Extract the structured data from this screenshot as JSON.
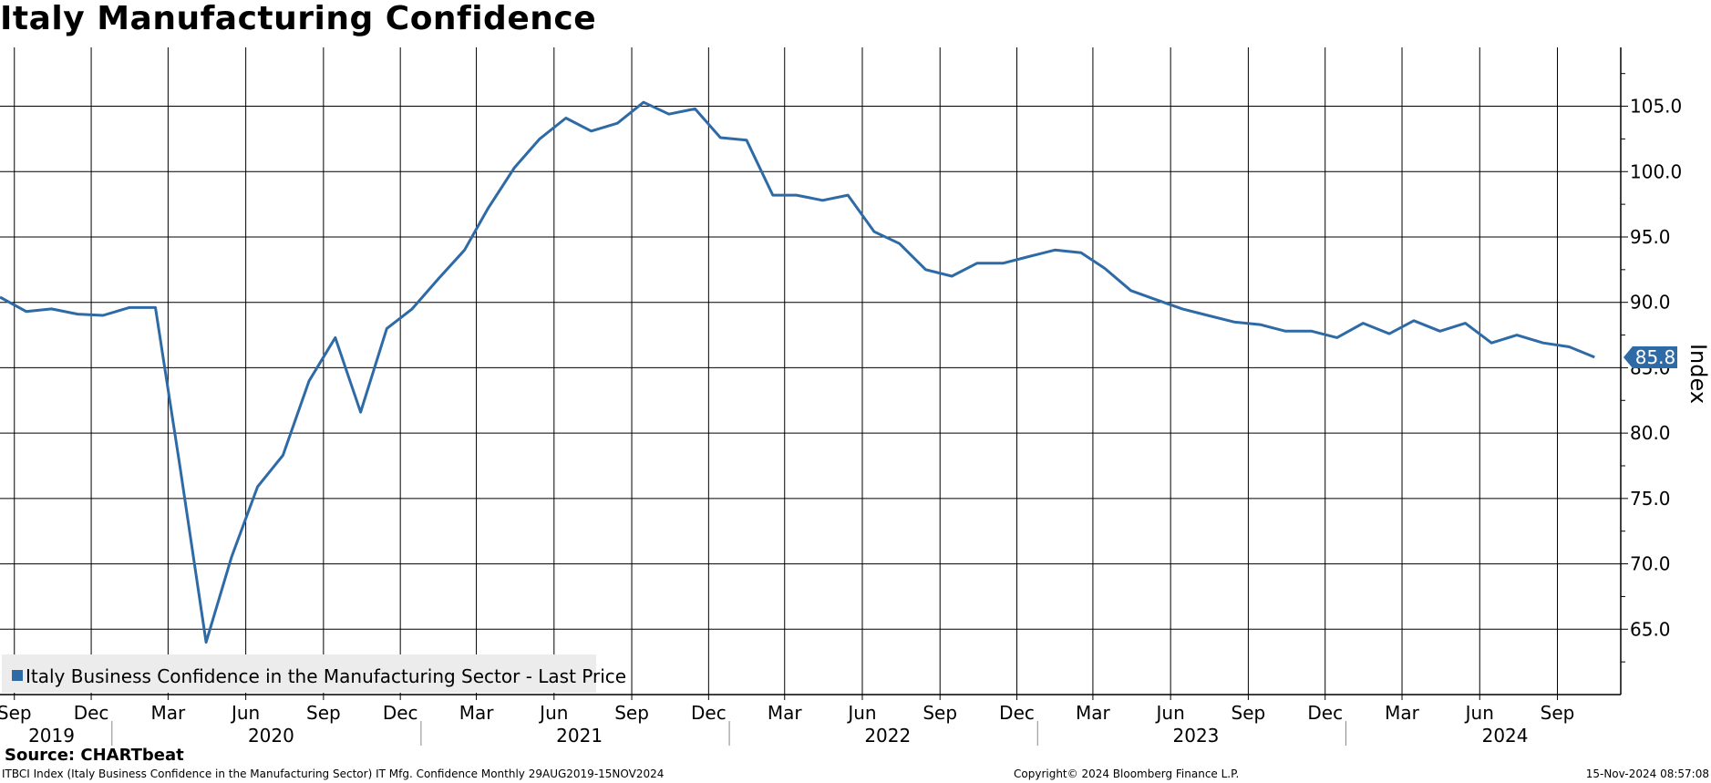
{
  "chart_data": {
    "type": "line",
    "title": "Italy Manufacturing Confidence",
    "ylabel": "Index",
    "ylim": [
      60.0,
      109.5
    ],
    "xlim": [
      "2019-08-15",
      "2024-11-15"
    ],
    "y_ticks": [
      "105.0",
      "100.0",
      "95.0",
      "90.0",
      "85.0",
      "80.0",
      "75.0",
      "70.0",
      "65.0"
    ],
    "x_month_ticks": [
      {
        "label": "Sep",
        "date": "2019-09-01"
      },
      {
        "label": "Dec",
        "date": "2019-12-01"
      },
      {
        "label": "Mar",
        "date": "2020-03-01"
      },
      {
        "label": "Jun",
        "date": "2020-06-01"
      },
      {
        "label": "Sep",
        "date": "2020-09-01"
      },
      {
        "label": "Dec",
        "date": "2020-12-01"
      },
      {
        "label": "Mar",
        "date": "2021-03-01"
      },
      {
        "label": "Jun",
        "date": "2021-06-01"
      },
      {
        "label": "Sep",
        "date": "2021-09-01"
      },
      {
        "label": "Dec",
        "date": "2021-12-01"
      },
      {
        "label": "Mar",
        "date": "2022-03-01"
      },
      {
        "label": "Jun",
        "date": "2022-06-01"
      },
      {
        "label": "Sep",
        "date": "2022-09-01"
      },
      {
        "label": "Dec",
        "date": "2022-12-01"
      },
      {
        "label": "Mar",
        "date": "2023-03-01"
      },
      {
        "label": "Jun",
        "date": "2023-06-01"
      },
      {
        "label": "Sep",
        "date": "2023-09-01"
      },
      {
        "label": "Dec",
        "date": "2023-12-01"
      },
      {
        "label": "Mar",
        "date": "2024-03-01"
      },
      {
        "label": "Jun",
        "date": "2024-06-01"
      },
      {
        "label": "Sep",
        "date": "2024-09-01"
      }
    ],
    "x_year_labels": [
      {
        "label": "2019",
        "date": "2019-10-15"
      },
      {
        "label": "2020",
        "date": "2020-07-01"
      },
      {
        "label": "2021",
        "date": "2021-07-01"
      },
      {
        "label": "2022",
        "date": "2022-07-01"
      },
      {
        "label": "2023",
        "date": "2023-07-01"
      },
      {
        "label": "2024",
        "date": "2024-07-01"
      }
    ],
    "year_dividers": [
      "2020-01-01",
      "2021-01-01",
      "2022-01-01",
      "2023-01-01",
      "2024-01-01"
    ],
    "grid": true,
    "legend_position": "bottom-left",
    "series": [
      {
        "name": "Italy Business Confidence in the Manufacturing Sector - Last Price",
        "color": "#2e6aa6",
        "last_value_label": "85.8",
        "points": [
          [
            "2019-08-15",
            90.4
          ],
          [
            "2019-09-15",
            89.3
          ],
          [
            "2019-10-15",
            89.5
          ],
          [
            "2019-11-15",
            89.1
          ],
          [
            "2019-12-15",
            89.0
          ],
          [
            "2020-01-15",
            89.6
          ],
          [
            "2020-02-15",
            89.6
          ],
          [
            "2020-03-15",
            77.5
          ],
          [
            "2020-04-15",
            64.0
          ],
          [
            "2020-05-15",
            70.5
          ],
          [
            "2020-06-15",
            75.9
          ],
          [
            "2020-07-15",
            78.3
          ],
          [
            "2020-08-15",
            84.0
          ],
          [
            "2020-09-15",
            87.3
          ],
          [
            "2020-10-15",
            81.6
          ],
          [
            "2020-11-15",
            88.0
          ],
          [
            "2020-12-15",
            89.5
          ],
          [
            "2021-01-15",
            91.8
          ],
          [
            "2021-02-15",
            94.0
          ],
          [
            "2021-03-15",
            97.2
          ],
          [
            "2021-04-15",
            100.3
          ],
          [
            "2021-05-15",
            102.5
          ],
          [
            "2021-06-15",
            104.1
          ],
          [
            "2021-07-15",
            103.1
          ],
          [
            "2021-08-15",
            103.7
          ],
          [
            "2021-09-15",
            105.3
          ],
          [
            "2021-10-15",
            104.4
          ],
          [
            "2021-11-15",
            104.8
          ],
          [
            "2021-12-15",
            102.6
          ],
          [
            "2022-01-15",
            102.4
          ],
          [
            "2022-02-15",
            98.2
          ],
          [
            "2022-03-15",
            98.2
          ],
          [
            "2022-04-15",
            97.8
          ],
          [
            "2022-05-15",
            98.2
          ],
          [
            "2022-06-15",
            95.4
          ],
          [
            "2022-07-15",
            94.5
          ],
          [
            "2022-08-15",
            92.5
          ],
          [
            "2022-09-15",
            92.0
          ],
          [
            "2022-10-15",
            93.0
          ],
          [
            "2022-11-15",
            93.0
          ],
          [
            "2022-12-15",
            93.5
          ],
          [
            "2023-01-15",
            94.0
          ],
          [
            "2023-02-15",
            93.8
          ],
          [
            "2023-03-15",
            92.6
          ],
          [
            "2023-04-15",
            90.9
          ],
          [
            "2023-05-15",
            90.2
          ],
          [
            "2023-06-15",
            89.5
          ],
          [
            "2023-07-15",
            89.0
          ],
          [
            "2023-08-15",
            88.5
          ],
          [
            "2023-09-15",
            88.3
          ],
          [
            "2023-10-15",
            87.8
          ],
          [
            "2023-11-15",
            87.8
          ],
          [
            "2023-12-15",
            87.3
          ],
          [
            "2024-01-15",
            88.4
          ],
          [
            "2024-02-15",
            87.6
          ],
          [
            "2024-03-15",
            88.6
          ],
          [
            "2024-04-15",
            87.8
          ],
          [
            "2024-05-15",
            88.4
          ],
          [
            "2024-06-15",
            86.9
          ],
          [
            "2024-07-15",
            87.5
          ],
          [
            "2024-08-15",
            86.9
          ],
          [
            "2024-09-15",
            86.6
          ],
          [
            "2024-10-15",
            85.8
          ]
        ]
      }
    ]
  },
  "source_line": "Source: CHARTbeat",
  "footer": {
    "description": "ITBCI Index (Italy Business Confidence in the Manufacturing Sector) IT Mfg. Confidence  Monthly 29AUG2019-15NOV2024",
    "copyright": "Copyright© 2024 Bloomberg Finance L.P.",
    "timestamp": "15-Nov-2024 08:57:08"
  }
}
